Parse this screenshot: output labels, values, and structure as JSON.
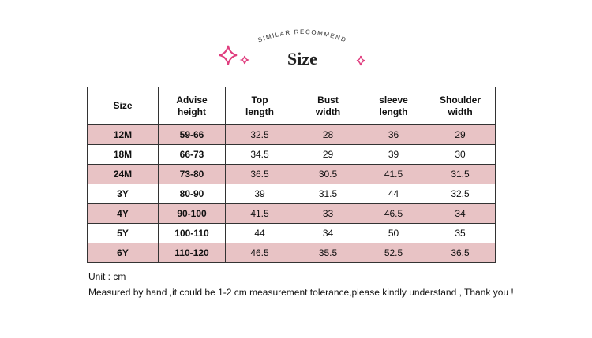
{
  "header": {
    "subtitle": "SIMILAR RECOMMEND",
    "title": "Size"
  },
  "table": {
    "columns": [
      "Size",
      "Advise\nheight",
      "Top\nlength",
      "Bust\nwidth",
      "sleeve\nlength",
      "Shoulder\nwidth"
    ],
    "rows": [
      [
        "12M",
        "59-66",
        "32.5",
        "28",
        "36",
        "29"
      ],
      [
        "18M",
        "66-73",
        "34.5",
        "29",
        "39",
        "30"
      ],
      [
        "24M",
        "73-80",
        "36.5",
        "30.5",
        "41.5",
        "31.5"
      ],
      [
        "3Y",
        "80-90",
        "39",
        "31.5",
        "44",
        "32.5"
      ],
      [
        "4Y",
        "90-100",
        "41.5",
        "33",
        "46.5",
        "34"
      ],
      [
        "5Y",
        "100-110",
        "44",
        "34",
        "50",
        "35"
      ],
      [
        "6Y",
        "110-120",
        "46.5",
        "35.5",
        "52.5",
        "36.5"
      ]
    ]
  },
  "notes": [
    "Unit : cm",
    "Measured by hand ,it could be 1-2 cm measurement tolerance,please kindly understand , Thank you !"
  ]
}
